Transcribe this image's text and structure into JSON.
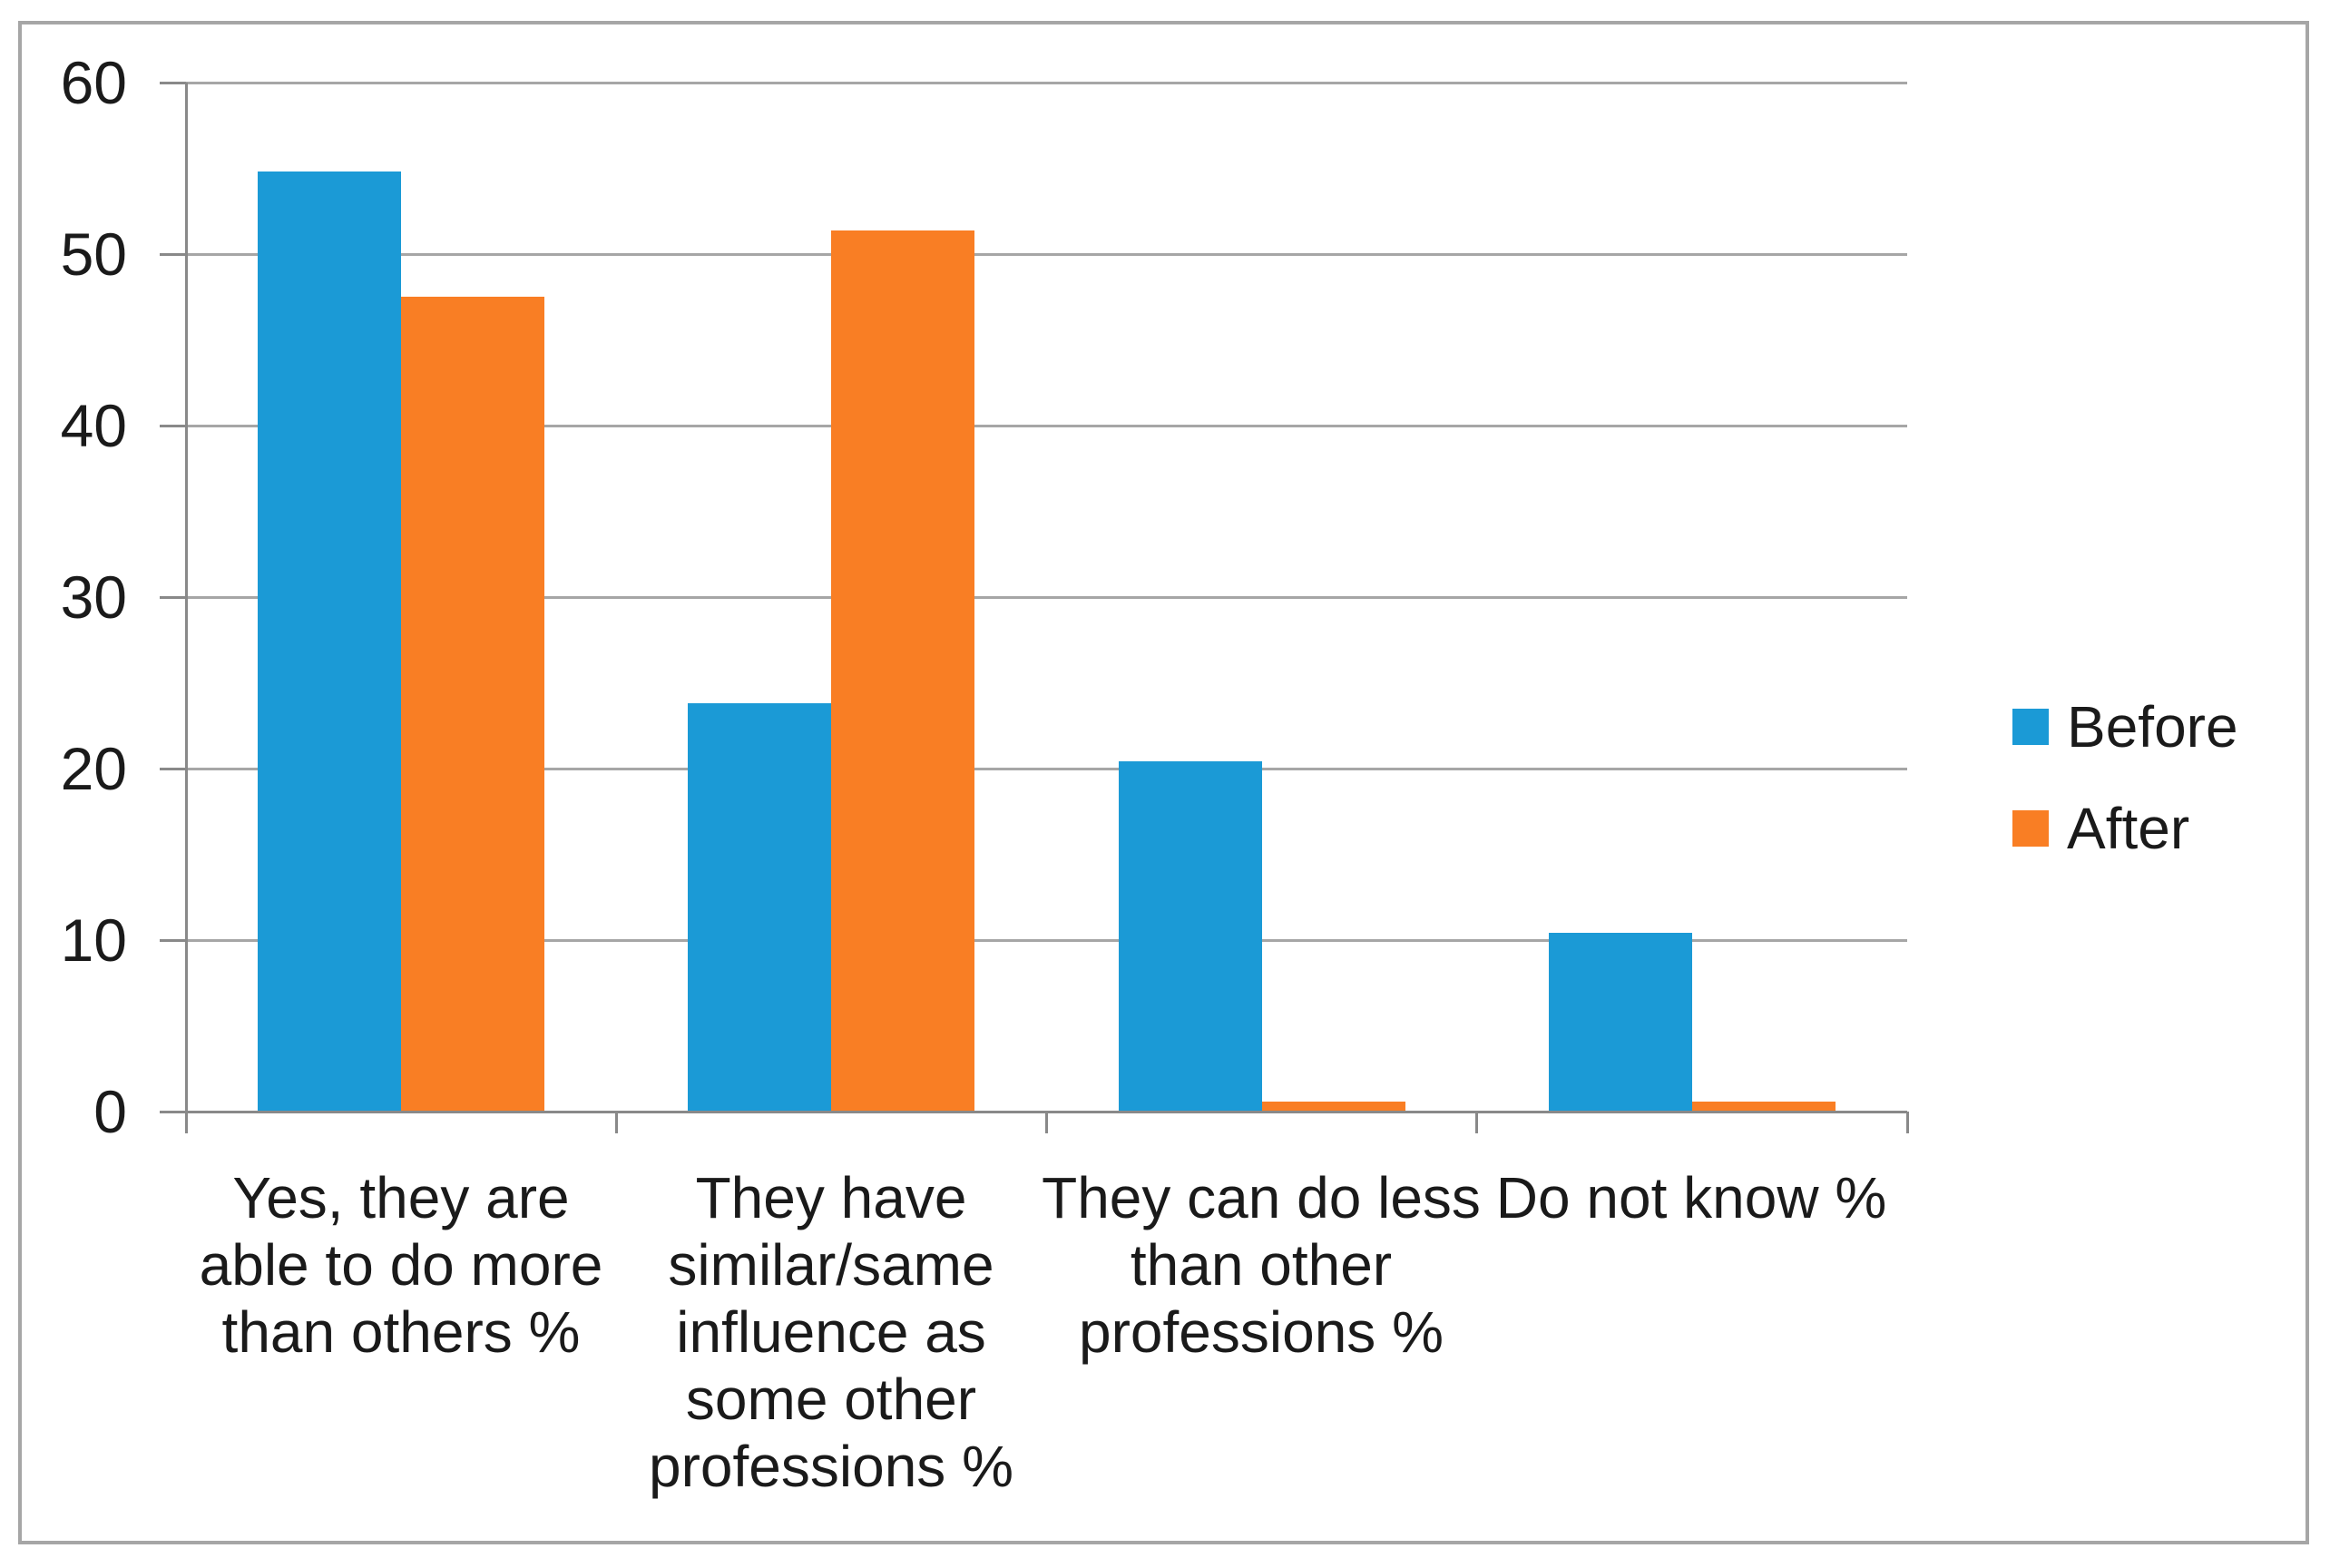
{
  "chart_data": {
    "type": "bar",
    "title": "",
    "xlabel": "",
    "ylabel": "",
    "categories": [
      "Yes, they are\nable to do more\nthan others %",
      "They have\nsimilar/same\ninfluence as\nsome other\nprofessions %",
      "They can do less\nthan other\nprofessions %",
      "Do not know %"
    ],
    "series": [
      {
        "name": "Before",
        "color": "#1b9ad6",
        "values": [
          54.8,
          23.8,
          20.4,
          10.4
        ]
      },
      {
        "name": "After",
        "color": "#f97e24",
        "values": [
          47.5,
          51.4,
          0.6,
          0.6
        ]
      }
    ],
    "ylim": [
      0,
      60
    ],
    "yticks": [
      0,
      10,
      20,
      30,
      40,
      50,
      60
    ],
    "grid": true,
    "legend_position": "right"
  },
  "colors": {
    "gridline": "#a6a6a6",
    "axis": "#898989",
    "frame_border": "#a6a6a6",
    "text": "#1a1a1a",
    "background": "#ffffff"
  }
}
